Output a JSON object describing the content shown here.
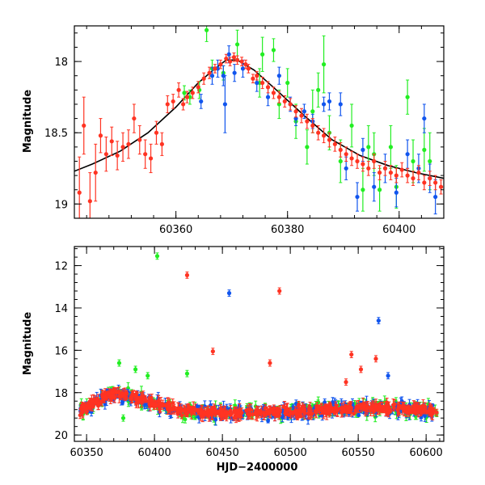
{
  "colors": {
    "green": "#22ee22",
    "blue": "#1155ee",
    "red": "#ff3322",
    "model": "#000000"
  },
  "chart_data": [
    {
      "type": "scatter",
      "panel": "top",
      "title": "",
      "xlabel": "",
      "ylabel": "Magnitude",
      "xlim": [
        60341.8,
        60408
      ],
      "ylim": [
        19.1,
        17.75
      ],
      "y_inverted": true,
      "xticks": [
        60360,
        60380,
        60400
      ],
      "yticks": [
        18,
        18.5,
        19
      ],
      "xtick_labels": [
        "60360",
        "60380",
        "60400"
      ],
      "ytick_labels": [
        "18",
        "18.5",
        "19"
      ],
      "grid": false,
      "legend": "none",
      "model_curve": {
        "x": [
          60341.8,
          60345,
          60350,
          60355,
          60360,
          60364,
          60367,
          60369,
          60371,
          60374,
          60378,
          60383,
          60388,
          60393,
          60398,
          60403,
          60408
        ],
        "y": [
          18.77,
          18.72,
          18.63,
          18.5,
          18.32,
          18.15,
          18.05,
          17.99,
          17.99,
          18.06,
          18.2,
          18.38,
          18.55,
          18.66,
          18.73,
          18.78,
          18.82
        ]
      },
      "series": [
        {
          "color": "red",
          "points": [
            [
              60342.7,
              18.92,
              0.25
            ],
            [
              60343.5,
              18.45,
              0.2
            ],
            [
              60344.6,
              18.98,
              0.2
            ],
            [
              60345.6,
              18.78,
              0.2
            ],
            [
              60346.5,
              18.52,
              0.12
            ],
            [
              60347.5,
              18.65,
              0.12
            ],
            [
              60348.5,
              18.56,
              0.1
            ],
            [
              60349.5,
              18.66,
              0.1
            ],
            [
              60350.5,
              18.6,
              0.1
            ],
            [
              60351.5,
              18.58,
              0.1
            ],
            [
              60352.5,
              18.4,
              0.1
            ],
            [
              60353.5,
              18.55,
              0.1
            ],
            [
              60354.5,
              18.65,
              0.1
            ],
            [
              60355.5,
              18.68,
              0.1
            ],
            [
              60356.5,
              18.5,
              0.08
            ],
            [
              60357.5,
              18.58,
              0.08
            ],
            [
              60358.5,
              18.3,
              0.06
            ],
            [
              60359.5,
              18.28,
              0.05
            ],
            [
              60360.5,
              18.2,
              0.05
            ],
            [
              60361.3,
              18.3,
              0.04
            ],
            [
              60362,
              18.25,
              0.04
            ],
            [
              60363,
              18.22,
              0.04
            ],
            [
              60364,
              18.18,
              0.04
            ],
            [
              60365,
              18.12,
              0.04
            ],
            [
              60366,
              18.08,
              0.04
            ],
            [
              60367,
              18.05,
              0.03
            ],
            [
              60368,
              18.02,
              0.03
            ],
            [
              60369,
              17.98,
              0.03
            ],
            [
              60369.7,
              18.0,
              0.03
            ],
            [
              60370.4,
              17.97,
              0.03
            ],
            [
              60371,
              17.99,
              0.03
            ],
            [
              60371.8,
              18.0,
              0.03
            ],
            [
              60372.5,
              18.02,
              0.03
            ],
            [
              60373,
              18.05,
              0.03
            ],
            [
              60373.8,
              18.12,
              0.03
            ],
            [
              60374.5,
              18.1,
              0.03
            ],
            [
              60375.5,
              18.15,
              0.04
            ],
            [
              60376.5,
              18.18,
              0.04
            ],
            [
              60377.5,
              18.22,
              0.04
            ],
            [
              60378.5,
              18.25,
              0.04
            ],
            [
              60379.5,
              18.28,
              0.04
            ],
            [
              60380.5,
              18.3,
              0.04
            ],
            [
              60381.5,
              18.35,
              0.04
            ],
            [
              60382.5,
              18.38,
              0.05
            ],
            [
              60383.5,
              18.42,
              0.05
            ],
            [
              60384.5,
              18.45,
              0.05
            ],
            [
              60385.5,
              18.5,
              0.05
            ],
            [
              60386.5,
              18.52,
              0.05
            ],
            [
              60387.5,
              18.55,
              0.05
            ],
            [
              60388.5,
              18.58,
              0.05
            ],
            [
              60389.5,
              18.62,
              0.05
            ],
            [
              60390.5,
              18.65,
              0.05
            ],
            [
              60391.5,
              18.68,
              0.05
            ],
            [
              60392.5,
              18.7,
              0.05
            ],
            [
              60393.5,
              18.72,
              0.05
            ],
            [
              60394.5,
              18.75,
              0.05
            ],
            [
              60395.5,
              18.7,
              0.05
            ],
            [
              60396.5,
              18.78,
              0.05
            ],
            [
              60397.5,
              18.75,
              0.05
            ],
            [
              60398.5,
              18.78,
              0.05
            ],
            [
              60399.5,
              18.8,
              0.05
            ],
            [
              60400.5,
              18.76,
              0.05
            ],
            [
              60401.5,
              18.8,
              0.05
            ],
            [
              60402.5,
              18.82,
              0.05
            ],
            [
              60403.5,
              18.78,
              0.05
            ],
            [
              60404.5,
              18.85,
              0.05
            ],
            [
              60405.5,
              18.82,
              0.05
            ],
            [
              60406.5,
              18.85,
              0.05
            ],
            [
              60407.5,
              18.88,
              0.05
            ]
          ]
        },
        {
          "color": "green",
          "points": [
            [
              60361.5,
              18.22,
              0.05
            ],
            [
              60362.5,
              18.25,
              0.05
            ],
            [
              60364.2,
              18.2,
              0.06
            ],
            [
              60365.5,
              17.78,
              0.08
            ],
            [
              60366.5,
              18.05,
              0.06
            ],
            [
              60368.5,
              18.08,
              0.05
            ],
            [
              60371,
              17.88,
              0.1
            ],
            [
              60375,
              18.15,
              0.1
            ],
            [
              60375.5,
              17.95,
              0.12
            ],
            [
              60377.5,
              17.92,
              0.08
            ],
            [
              60378.5,
              18.3,
              0.1
            ],
            [
              60380,
              18.15,
              0.1
            ],
            [
              60381.5,
              18.42,
              0.12
            ],
            [
              60383.5,
              18.6,
              0.12
            ],
            [
              60384.5,
              18.35,
              0.15
            ],
            [
              60385.5,
              18.2,
              0.12
            ],
            [
              60386.5,
              18.02,
              0.2
            ],
            [
              60387.5,
              18.5,
              0.12
            ],
            [
              60389.5,
              18.7,
              0.15
            ],
            [
              60391.5,
              18.45,
              0.15
            ],
            [
              60393.5,
              18.9,
              0.15
            ],
            [
              60394.5,
              18.6,
              0.15
            ],
            [
              60395.5,
              18.65,
              0.15
            ],
            [
              60396.5,
              18.9,
              0.15
            ],
            [
              60398.5,
              18.6,
              0.15
            ],
            [
              60399.5,
              18.88,
              0.15
            ],
            [
              60401.5,
              18.25,
              0.12
            ],
            [
              60402.5,
              18.7,
              0.15
            ],
            [
              60404.5,
              18.62,
              0.15
            ],
            [
              60405.5,
              18.7,
              0.2
            ]
          ]
        },
        {
          "color": "blue",
          "points": [
            [
              60364.5,
              18.28,
              0.05
            ],
            [
              60366.5,
              18.1,
              0.06
            ],
            [
              60367.5,
              18.05,
              0.06
            ],
            [
              60368.5,
              18.1,
              0.07
            ],
            [
              60368.8,
              18.3,
              0.2
            ],
            [
              60369.5,
              17.95,
              0.06
            ],
            [
              60370.5,
              18.08,
              0.06
            ],
            [
              60372,
              18.05,
              0.06
            ],
            [
              60374.5,
              18.15,
              0.06
            ],
            [
              60376.5,
              18.25,
              0.06
            ],
            [
              60378.5,
              18.1,
              0.06
            ],
            [
              60380.5,
              18.3,
              0.05
            ],
            [
              60381.5,
              18.4,
              0.05
            ],
            [
              60383,
              18.35,
              0.05
            ],
            [
              60384.5,
              18.42,
              0.05
            ],
            [
              60386.5,
              18.3,
              0.05
            ],
            [
              60387.5,
              18.28,
              0.06
            ],
            [
              60389.5,
              18.3,
              0.08
            ],
            [
              60390.5,
              18.75,
              0.08
            ],
            [
              60392.5,
              18.95,
              0.1
            ],
            [
              60393.5,
              18.62,
              0.08
            ],
            [
              60395.5,
              18.88,
              0.1
            ],
            [
              60397.5,
              18.75,
              0.1
            ],
            [
              60399.5,
              18.92,
              0.1
            ],
            [
              60401.5,
              18.65,
              0.1
            ],
            [
              60403.5,
              18.75,
              0.1
            ],
            [
              60404.5,
              18.4,
              0.1
            ],
            [
              60405.5,
              18.82,
              0.1
            ],
            [
              60406.5,
              18.95,
              0.12
            ]
          ]
        }
      ]
    },
    {
      "type": "scatter",
      "panel": "bottom",
      "title": "",
      "xlabel": "HJD−2400000",
      "ylabel": "Magnitude",
      "xlim": [
        60341,
        60613
      ],
      "ylim": [
        20.3,
        11.1
      ],
      "y_inverted": true,
      "xticks": [
        60350,
        60400,
        60450,
        60500,
        60550,
        60600
      ],
      "yticks": [
        12,
        14,
        16,
        18,
        20
      ],
      "xtick_labels": [
        "60350",
        "60400",
        "60450",
        "60500",
        "60550",
        "60600"
      ],
      "ytick_labels": [
        "12",
        "14",
        "16",
        "18",
        "20"
      ],
      "grid": false,
      "legend": "none",
      "band": {
        "description_free": true,
        "x_start": 60345,
        "x_end": 60608
      },
      "outliers": [
        {
          "color": "green",
          "x": 60402,
          "y": 11.55
        },
        {
          "color": "red",
          "x": 60424,
          "y": 12.45
        },
        {
          "color": "blue",
          "x": 60455,
          "y": 13.3
        },
        {
          "color": "red",
          "x": 60492,
          "y": 13.2
        },
        {
          "color": "blue",
          "x": 60565,
          "y": 14.6
        },
        {
          "color": "red",
          "x": 60443,
          "y": 16.05
        },
        {
          "color": "red",
          "x": 60545,
          "y": 16.2
        },
        {
          "color": "red",
          "x": 60563,
          "y": 16.4
        },
        {
          "color": "green",
          "x": 60374,
          "y": 16.6
        },
        {
          "color": "blue",
          "x": 60572,
          "y": 17.2
        },
        {
          "color": "red",
          "x": 60485,
          "y": 16.6
        },
        {
          "color": "red",
          "x": 60552,
          "y": 16.9
        },
        {
          "color": "green",
          "x": 60386,
          "y": 16.9
        },
        {
          "color": "red",
          "x": 60541,
          "y": 17.5
        },
        {
          "color": "green",
          "x": 60395,
          "y": 17.2
        },
        {
          "color": "green",
          "x": 60424,
          "y": 17.1
        },
        {
          "color": "green",
          "x": 60377,
          "y": 19.2
        }
      ]
    }
  ]
}
